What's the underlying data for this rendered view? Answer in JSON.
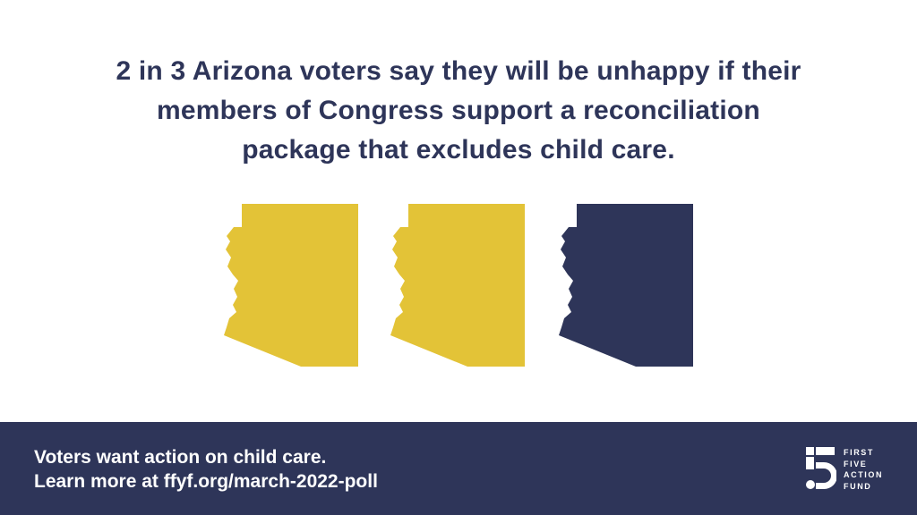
{
  "headline": {
    "lines": [
      "2 in 3 Arizona voters say they will be unhappy if their",
      "members of Congress support a reconciliation",
      "package that excludes child care."
    ]
  },
  "graphic": {
    "items": [
      {
        "shape": "arizona-state",
        "color": "#e3c337"
      },
      {
        "shape": "arizona-state",
        "color": "#e3c337"
      },
      {
        "shape": "arizona-state",
        "color": "#2e3559"
      }
    ],
    "unhappy_share": "2 of 3"
  },
  "footer": {
    "background": "#2e3559",
    "lines": [
      "Voters want action on child care.",
      "Learn more at ffyf.org/march-2022-poll"
    ]
  },
  "logo": {
    "icon": "number-five-logo-icon",
    "words": [
      "FIRST",
      "FIVE",
      "ACTION",
      "FUND"
    ]
  },
  "colors": {
    "navy": "#2e3559",
    "gold": "#e3c337",
    "background": "#ffffff"
  }
}
